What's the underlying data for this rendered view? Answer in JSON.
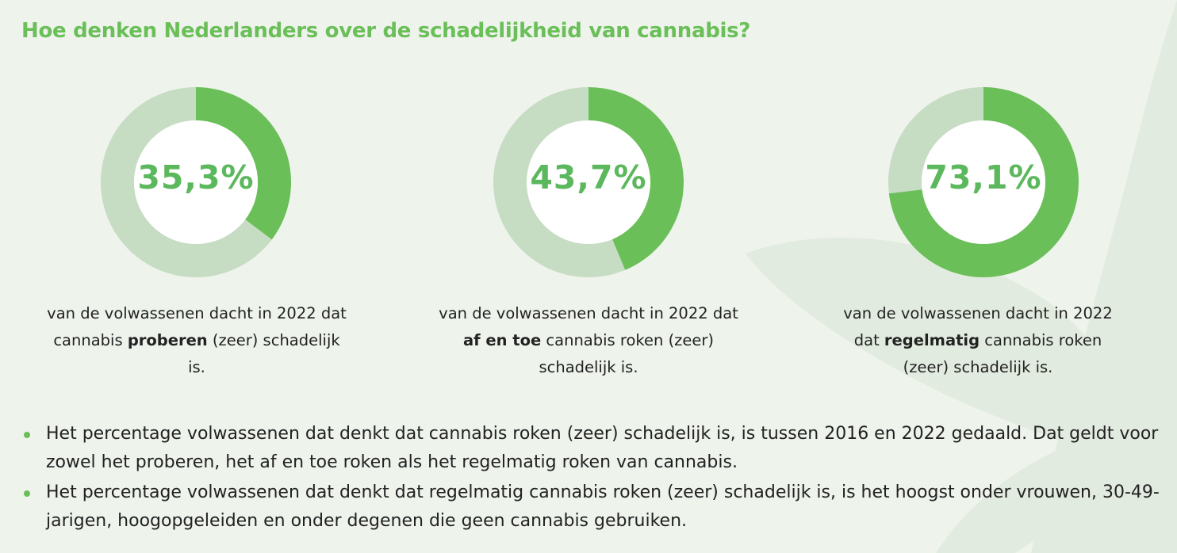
{
  "title": "Hoe denken Nederlanders over de schadelijkheid van cannabis?",
  "colors": {
    "accent": "#6abf58",
    "remainder": "#c6dcc3",
    "background": "#eef3ec"
  },
  "chart_data": [
    {
      "type": "pie",
      "value": 35.3,
      "label": "35,3%",
      "caption": {
        "pre": "van de volwassenen dacht in 2022 dat cannabis ",
        "bold": "proberen",
        "post": " (zeer) schadelijk is."
      }
    },
    {
      "type": "pie",
      "value": 43.7,
      "label": "43,7%",
      "caption": {
        "pre": "van de volwassenen dacht in 2022 dat ",
        "bold": "af en toe",
        "post": " cannabis roken (zeer) schadelijk is."
      }
    },
    {
      "type": "pie",
      "value": 73.1,
      "label": "73,1%",
      "caption": {
        "pre": "van de volwassenen dacht in 2022 dat ",
        "bold": "regelmatig",
        "post": " cannabis roken (zeer) schadelijk is."
      }
    }
  ],
  "bullets": [
    "Het percentage volwassenen dat denkt dat cannabis roken (zeer) schadelijk is, is tussen 2016 en 2022 gedaald. Dat geldt voor zowel het proberen, het af en toe roken als het regelmatig roken van cannabis.",
    "Het percentage volwassenen dat denkt dat regelmatig cannabis roken (zeer) schadelijk is, is het hoogst onder vrouwen, 30-49-jarigen, hoogopgeleiden en onder degenen die geen cannabis gebruiken."
  ]
}
